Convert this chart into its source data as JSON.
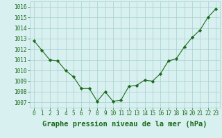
{
  "x": [
    0,
    1,
    2,
    3,
    4,
    5,
    6,
    7,
    8,
    9,
    10,
    11,
    12,
    13,
    14,
    15,
    16,
    17,
    18,
    19,
    20,
    21,
    22,
    23
  ],
  "y": [
    1012.8,
    1011.9,
    1011.0,
    1010.9,
    1010.0,
    1009.4,
    1008.3,
    1008.3,
    1007.1,
    1008.0,
    1007.1,
    1007.2,
    1008.5,
    1008.6,
    1009.1,
    1009.0,
    1009.7,
    1010.9,
    1011.1,
    1012.2,
    1013.1,
    1013.8,
    1015.0,
    1015.8
  ],
  "line_color": "#1a6b1a",
  "marker": "D",
  "marker_size": 2.2,
  "bg_color": "#d8f0f0",
  "grid_color": "#a8cece",
  "xlabel": "Graphe pression niveau de la mer (hPa)",
  "xlabel_fontsize": 7.5,
  "ylabel_ticks": [
    1007,
    1008,
    1009,
    1010,
    1011,
    1012,
    1013,
    1014,
    1015,
    1016
  ],
  "ylim": [
    1006.5,
    1016.5
  ],
  "xlim": [
    -0.5,
    23.5
  ],
  "tick_label_fontsize": 5.5,
  "tick_color": "#1a6b1a"
}
